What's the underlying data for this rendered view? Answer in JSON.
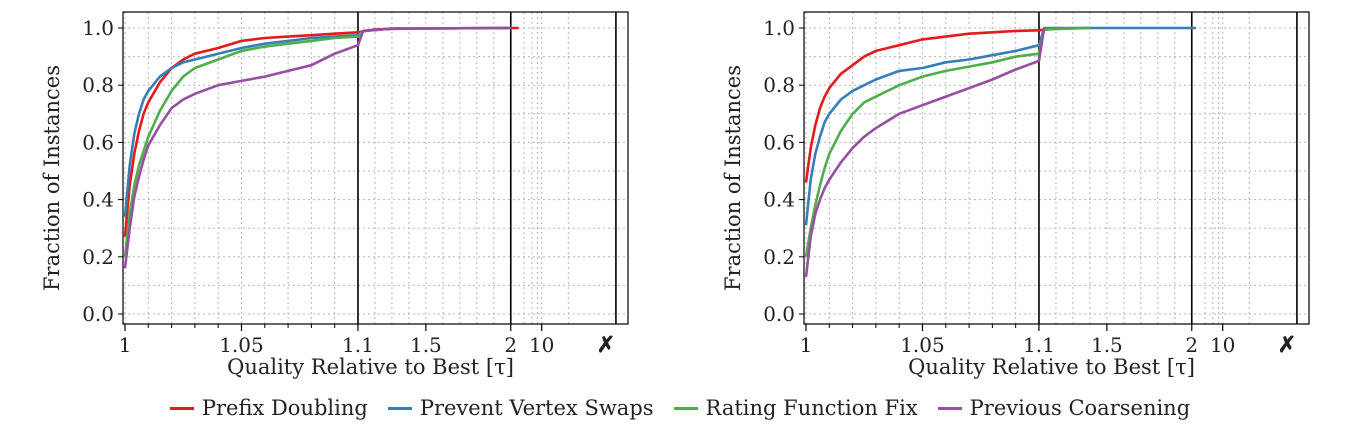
{
  "chart_data": [
    {
      "type": "line",
      "xlabel": "Quality Relative to Best [τ]",
      "ylabel": "Fraction of Instances",
      "ylim": [
        0,
        1.0
      ],
      "yticks": [
        "0.0",
        "0.2",
        "0.4",
        "0.6",
        "0.8",
        "1.0"
      ],
      "xticks": [
        "1",
        "1.05",
        "1.1",
        "1.5",
        "2",
        "10",
        "✗"
      ],
      "x_scale": "piecewise: linear 1–1.1, 1.1–2, 2–100, then failure column",
      "grid": true,
      "series": [
        {
          "name": "Prefix Doubling",
          "color": "#e41a1c",
          "x": [
            1.0,
            1.002,
            1.004,
            1.006,
            1.008,
            1.01,
            1.015,
            1.02,
            1.025,
            1.03,
            1.04,
            1.05,
            1.06,
            1.07,
            1.08,
            1.09,
            1.1,
            1.2,
            1.4,
            2.0,
            3.0
          ],
          "y": [
            0.27,
            0.45,
            0.56,
            0.64,
            0.7,
            0.74,
            0.81,
            0.86,
            0.89,
            0.91,
            0.93,
            0.955,
            0.965,
            0.97,
            0.975,
            0.98,
            0.985,
            0.995,
            0.998,
            1.0,
            1.0
          ]
        },
        {
          "name": "Prevent Vertex Swaps",
          "color": "#377eb8",
          "x": [
            1.0,
            1.002,
            1.004,
            1.006,
            1.008,
            1.01,
            1.015,
            1.02,
            1.025,
            1.03,
            1.04,
            1.05,
            1.06,
            1.07,
            1.08,
            1.09,
            1.1,
            1.13,
            1.3,
            2.0
          ],
          "y": [
            0.34,
            0.52,
            0.63,
            0.7,
            0.75,
            0.78,
            0.83,
            0.86,
            0.88,
            0.89,
            0.91,
            0.93,
            0.945,
            0.955,
            0.965,
            0.97,
            0.975,
            0.99,
            0.998,
            1.0
          ]
        },
        {
          "name": "Rating Function Fix",
          "color": "#4daf4a",
          "x": [
            1.0,
            1.002,
            1.004,
            1.006,
            1.008,
            1.01,
            1.015,
            1.02,
            1.025,
            1.03,
            1.04,
            1.05,
            1.06,
            1.07,
            1.08,
            1.09,
            1.1,
            1.13,
            1.3,
            2.0
          ],
          "y": [
            0.2,
            0.35,
            0.45,
            0.52,
            0.57,
            0.62,
            0.71,
            0.78,
            0.83,
            0.86,
            0.89,
            0.92,
            0.935,
            0.945,
            0.955,
            0.965,
            0.97,
            0.99,
            0.998,
            1.0
          ]
        },
        {
          "name": "Previous Coarsening",
          "color": "#984ea3",
          "x": [
            1.0,
            1.002,
            1.004,
            1.006,
            1.008,
            1.01,
            1.015,
            1.02,
            1.025,
            1.03,
            1.04,
            1.05,
            1.06,
            1.07,
            1.08,
            1.09,
            1.1,
            1.13,
            1.3,
            2.0
          ],
          "y": [
            0.16,
            0.3,
            0.41,
            0.48,
            0.54,
            0.59,
            0.66,
            0.72,
            0.75,
            0.77,
            0.8,
            0.815,
            0.83,
            0.85,
            0.87,
            0.91,
            0.94,
            0.99,
            0.998,
            1.0
          ]
        }
      ]
    },
    {
      "type": "line",
      "xlabel": "Quality Relative to Best [τ]",
      "ylabel": "Fraction of Instances",
      "ylim": [
        0,
        1.0
      ],
      "yticks": [
        "0.0",
        "0.2",
        "0.4",
        "0.6",
        "0.8",
        "1.0"
      ],
      "xticks": [
        "1",
        "1.05",
        "1.1",
        "1.5",
        "2",
        "10",
        "✗"
      ],
      "x_scale": "piecewise: linear 1–1.1, 1.1–2, 2–100, then failure column",
      "grid": true,
      "series": [
        {
          "name": "Prefix Doubling",
          "color": "#e41a1c",
          "x": [
            1.0,
            1.002,
            1.004,
            1.006,
            1.008,
            1.01,
            1.015,
            1.02,
            1.025,
            1.03,
            1.04,
            1.05,
            1.06,
            1.07,
            1.08,
            1.09,
            1.1,
            1.2,
            1.4
          ],
          "y": [
            0.46,
            0.58,
            0.66,
            0.72,
            0.76,
            0.79,
            0.84,
            0.87,
            0.9,
            0.92,
            0.94,
            0.96,
            0.97,
            0.98,
            0.985,
            0.99,
            0.992,
            0.998,
            1.0
          ]
        },
        {
          "name": "Prevent Vertex Swaps",
          "color": "#377eb8",
          "x": [
            1.0,
            1.002,
            1.004,
            1.006,
            1.008,
            1.01,
            1.015,
            1.02,
            1.025,
            1.03,
            1.04,
            1.05,
            1.06,
            1.07,
            1.08,
            1.09,
            1.1,
            1.13,
            1.4,
            2.5
          ],
          "y": [
            0.31,
            0.47,
            0.56,
            0.62,
            0.67,
            0.7,
            0.75,
            0.78,
            0.8,
            0.82,
            0.85,
            0.86,
            0.88,
            0.89,
            0.905,
            0.92,
            0.94,
            1.0,
            1.0,
            1.0
          ]
        },
        {
          "name": "Rating Function Fix",
          "color": "#4daf4a",
          "x": [
            1.0,
            1.002,
            1.004,
            1.006,
            1.008,
            1.01,
            1.015,
            1.02,
            1.025,
            1.03,
            1.04,
            1.05,
            1.06,
            1.07,
            1.08,
            1.09,
            1.1,
            1.13,
            1.4
          ],
          "y": [
            0.2,
            0.3,
            0.38,
            0.45,
            0.51,
            0.56,
            0.64,
            0.7,
            0.74,
            0.76,
            0.8,
            0.83,
            0.85,
            0.865,
            0.88,
            0.9,
            0.91,
            0.995,
            1.0
          ]
        },
        {
          "name": "Previous Coarsening",
          "color": "#984ea3",
          "x": [
            1.0,
            1.002,
            1.004,
            1.006,
            1.008,
            1.01,
            1.015,
            1.02,
            1.025,
            1.03,
            1.04,
            1.05,
            1.06,
            1.07,
            1.08,
            1.09,
            1.1,
            1.13
          ],
          "y": [
            0.13,
            0.27,
            0.35,
            0.4,
            0.44,
            0.47,
            0.53,
            0.58,
            0.62,
            0.65,
            0.7,
            0.73,
            0.76,
            0.79,
            0.82,
            0.855,
            0.885,
            1.0
          ]
        }
      ]
    }
  ],
  "legend": {
    "placement": "bottom-center",
    "items": [
      {
        "label": "Prefix Doubling",
        "color": "#e41a1c"
      },
      {
        "label": "Prevent Vertex Swaps",
        "color": "#377eb8"
      },
      {
        "label": "Rating Function Fix",
        "color": "#4daf4a"
      },
      {
        "label": "Previous Coarsening",
        "color": "#984ea3"
      }
    ]
  }
}
